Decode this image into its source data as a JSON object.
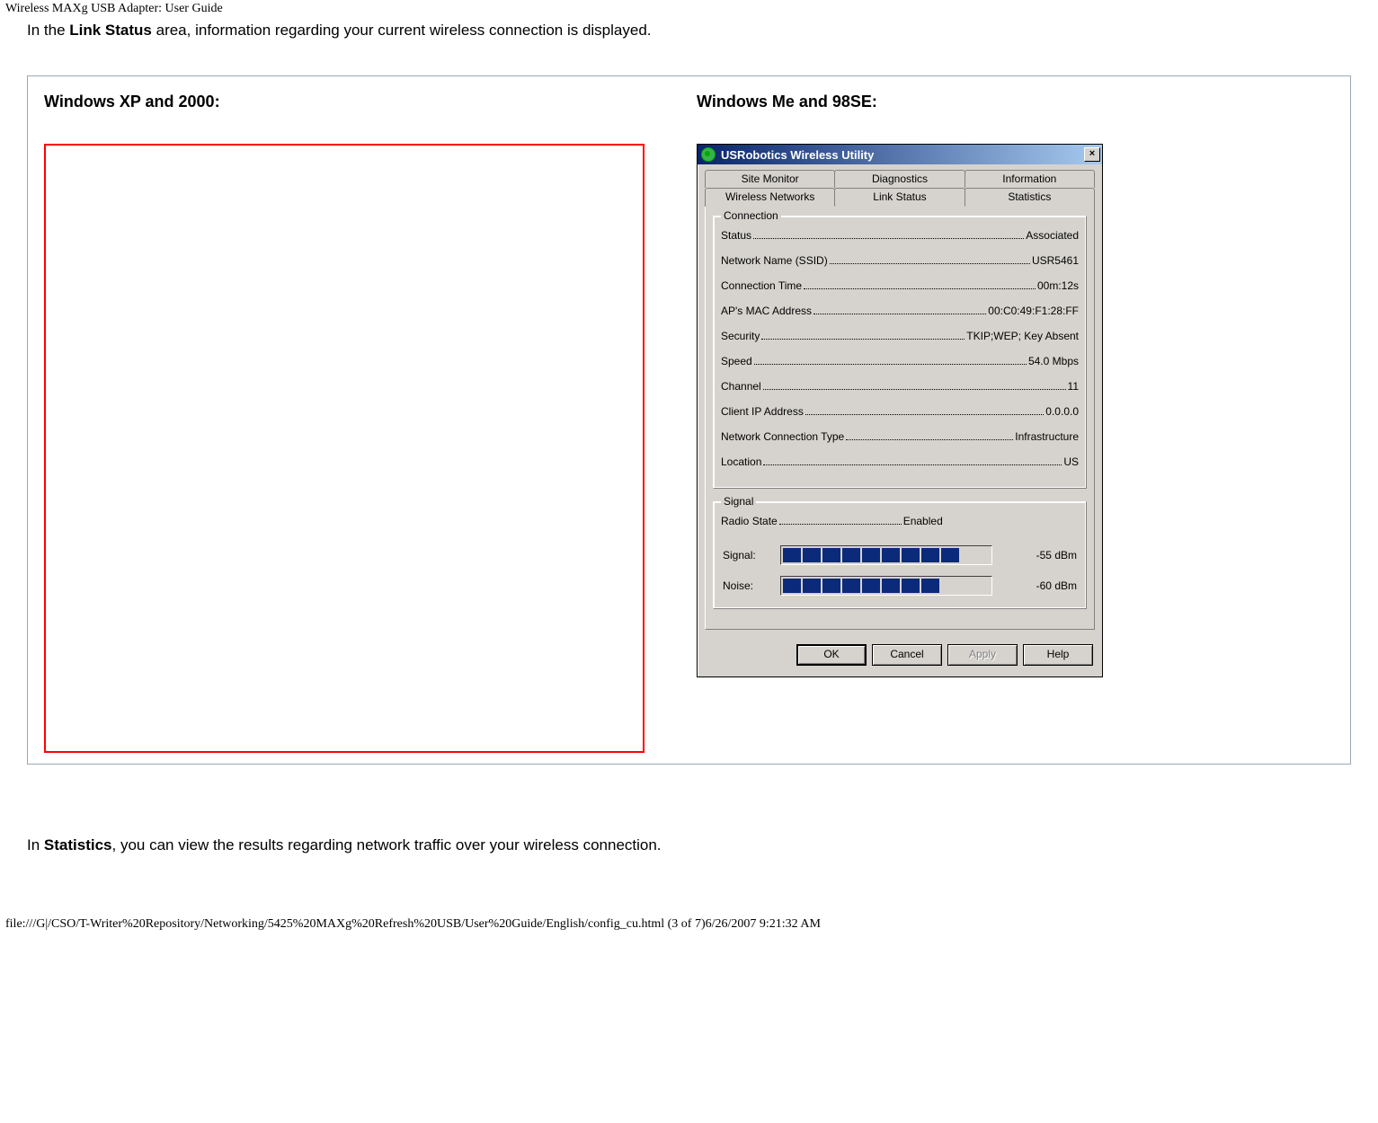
{
  "browser_title": "Wireless MAXg USB Adapter: User Guide",
  "intro": {
    "prefix": "In the ",
    "bold": "Link Status",
    "suffix": " area, information regarding your current wireless connection is displayed."
  },
  "headings": {
    "xp": "Windows XP and 2000:",
    "me98": "Windows Me and 98SE:"
  },
  "dialog": {
    "title": "USRobotics Wireless Utility",
    "close": "×",
    "tabs_row1": [
      "Site Monitor",
      "Diagnostics",
      "Information"
    ],
    "tabs_row2": [
      "Wireless Networks",
      "Link Status",
      "Statistics"
    ],
    "active_tab": "Link Status",
    "connection": {
      "legend": "Connection",
      "rows": [
        {
          "label": "Status",
          "value": "Associated"
        },
        {
          "label": "Network Name (SSID)",
          "value": "USR5461"
        },
        {
          "label": "Connection Time",
          "value": "00m:12s"
        },
        {
          "label": "AP's MAC Address",
          "value": "00:C0:49:F1:28:FF"
        },
        {
          "label": "Security",
          "value": "TKIP;WEP; Key Absent"
        },
        {
          "label": "Speed",
          "value": "54.0 Mbps"
        },
        {
          "label": "Channel",
          "value": "11"
        },
        {
          "label": "Client IP Address",
          "value": "0.0.0.0"
        },
        {
          "label": "Network Connection Type",
          "value": "Infrastructure"
        },
        {
          "label": "Location",
          "value": "US"
        }
      ]
    },
    "signal": {
      "legend": "Signal",
      "radio_label": "Radio State",
      "radio_value": "Enabled",
      "signal_label": "Signal:",
      "signal_segments": 9,
      "signal_value": "-55 dBm",
      "noise_label": "Noise:",
      "noise_segments": 8,
      "noise_value": "-60 dBm",
      "max_segments": 12,
      "segment_color": "#0b2a7a"
    },
    "buttons": {
      "ok": "OK",
      "cancel": "Cancel",
      "apply": "Apply",
      "help": "Help"
    }
  },
  "stats_para": {
    "prefix": "In ",
    "bold": "Statistics",
    "suffix": ", you can view the results regarding network traffic over your wireless connection."
  },
  "footer_path": "file:///G|/CSO/T-Writer%20Repository/Networking/5425%20MAXg%20Refresh%20USB/User%20Guide/English/config_cu.html (3 of 7)6/26/2007 9:21:32 AM"
}
